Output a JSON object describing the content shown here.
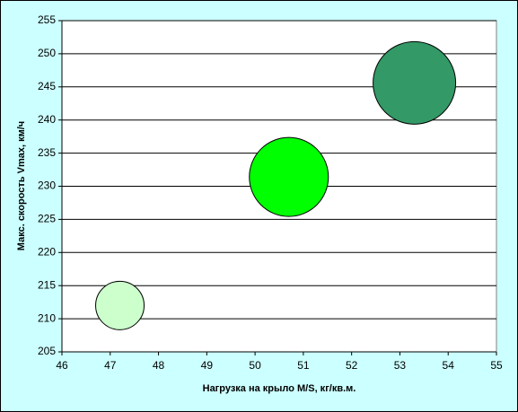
{
  "chart_data": {
    "type": "bubble",
    "x_label": "Нагрузка на крыло M/S, кг/кв.м.",
    "y_label": "Макс. скорость Vmax, км/ч",
    "x": [
      47.2,
      50.7,
      53.3
    ],
    "values": [
      212,
      231.4,
      245.6
    ],
    "sizes": [
      7.3,
      19.4,
      21.2
    ],
    "colors": [
      "#ccffcc",
      "#00ff00",
      "#339966"
    ],
    "xlim": [
      46,
      55
    ],
    "xticks": [
      46,
      47,
      48,
      49,
      50,
      51,
      52,
      53,
      54,
      55
    ],
    "ylim": [
      205,
      255
    ],
    "yticks": [
      205,
      210,
      215,
      220,
      225,
      230,
      235,
      240,
      245,
      250,
      255
    ],
    "grid": true
  }
}
